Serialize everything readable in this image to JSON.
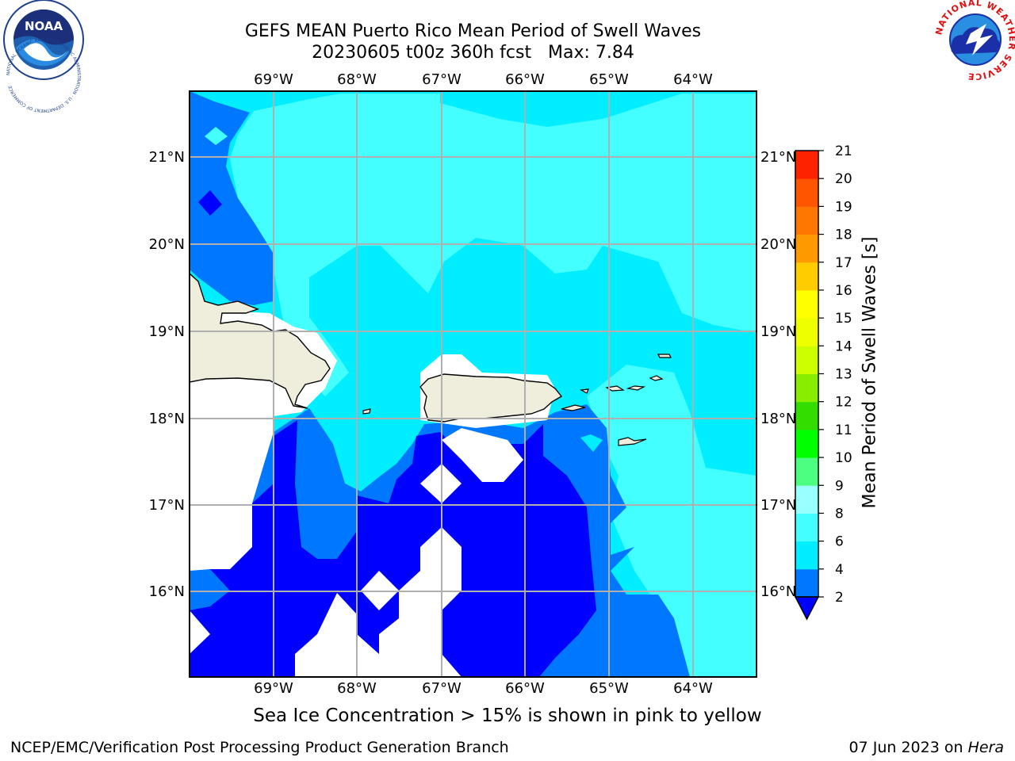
{
  "title": {
    "line1": "GEFS MEAN Puerto Rico Mean Period of Swell Waves",
    "line2": "20230605 t00z 360h fcst   Max: 7.84"
  },
  "map": {
    "lon_ticks": [
      "69°W",
      "68°W",
      "67°W",
      "66°W",
      "65°W",
      "64°W"
    ],
    "lat_ticks": [
      "21°N",
      "20°N",
      "19°N",
      "18°N",
      "17°N",
      "16°N"
    ],
    "colors": {
      "land": "#efeedd",
      "under_2": "#0000ff",
      "band_2_4": "#0077ff",
      "band_4_6": "#00eeff",
      "band_6_8": "#44ffff",
      "no_data": "#ffffff",
      "grid": "#b0b0b0"
    }
  },
  "colorbar": {
    "label": "Mean Period of Swell Waves [s]",
    "ticks": [
      "2",
      "4",
      "6",
      "8",
      "9",
      "10",
      "11",
      "12",
      "13",
      "14",
      "15",
      "16",
      "17",
      "18",
      "19",
      "20",
      "21"
    ],
    "colors": [
      "#0077ff",
      "#00eeff",
      "#44ffff",
      "#99ffff",
      "#4dff80",
      "#00ff00",
      "#33dd00",
      "#88ee00",
      "#ccff00",
      "#eeff00",
      "#ffff00",
      "#ffcc00",
      "#ff9900",
      "#ff7700",
      "#ff5500",
      "#ff2200"
    ],
    "under_color": "#0000ff"
  },
  "caption": "Sea Ice Concentration > 15% is shown in pink to yellow",
  "footer": {
    "left": "NCEP/EMC/Verification Post Processing Product Generation Branch",
    "date": "07 Jun 2023 on ",
    "host": "Hera"
  },
  "logos": {
    "noaa_text": "NOAA",
    "noaa_ring": "NATIONAL OCEANIC AND ATMOSPHERIC ADMINISTRATION · U.S. DEPARTMENT OF COMMERCE",
    "nws_ring": "NATIONAL WEATHER SERVICE"
  }
}
